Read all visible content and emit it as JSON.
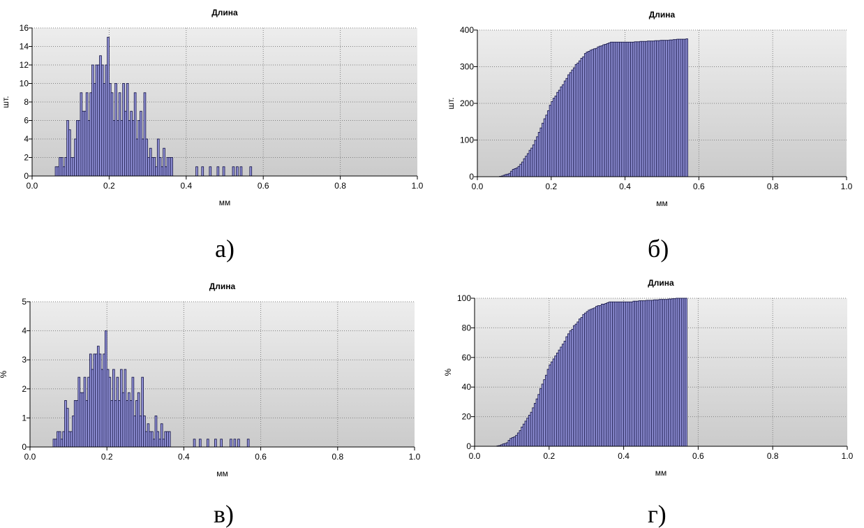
{
  "colors": {
    "plot_bg_top": "#ededed",
    "plot_bg_bottom": "#cbcbcb",
    "bar_fill": "#9a9ae2",
    "bar_stroke": "#1c1c4c",
    "grid": "#808080"
  },
  "chart_data": [
    {
      "id": "a",
      "type": "bar",
      "title": "Длина",
      "xlabel": "мм",
      "ylabel": "шт.",
      "panel_label": "а)",
      "xlim": [
        0.0,
        1.0
      ],
      "ylim": [
        0,
        16
      ],
      "xticks": [
        "0.0",
        "0.2",
        "0.4",
        "0.6",
        "0.8",
        "1.0"
      ],
      "yticks": [
        "0",
        "2",
        "4",
        "6",
        "8",
        "10",
        "12",
        "14",
        "16"
      ],
      "grid": true,
      "bin_start": 0.06,
      "bin_width": 0.005,
      "values": [
        1,
        1,
        2,
        2,
        1,
        2,
        6,
        5,
        2,
        2,
        4,
        6,
        6,
        9,
        7,
        7,
        9,
        6,
        9,
        12,
        10,
        12,
        12,
        13,
        12,
        10,
        12,
        15,
        10,
        9,
        6,
        10,
        6,
        9,
        6,
        10,
        7,
        10,
        6,
        7,
        6,
        9,
        4,
        6,
        7,
        4,
        9,
        4,
        2,
        3,
        2,
        2,
        1,
        4,
        2,
        1,
        3,
        1,
        2,
        2,
        2,
        0,
        0,
        0,
        0,
        0,
        0,
        0,
        0,
        0,
        0,
        0,
        0,
        1,
        0,
        0,
        1,
        0,
        0,
        0,
        1,
        0,
        0,
        0,
        1,
        0,
        0,
        1,
        0,
        0,
        0,
        0,
        1,
        0,
        1,
        0,
        1,
        0,
        0,
        0,
        0,
        1
      ]
    },
    {
      "id": "b",
      "type": "bar",
      "title": "Длина",
      "xlabel": "мм",
      "ylabel": "шт.",
      "panel_label": "б)",
      "xlim": [
        0.0,
        1.0
      ],
      "ylim": [
        0,
        400
      ],
      "xticks": [
        "0.0",
        "0.2",
        "0.4",
        "0.6",
        "0.8",
        "1.0"
      ],
      "yticks": [
        "0",
        "100",
        "200",
        "300",
        "400"
      ],
      "grid": true,
      "bin_start": 0.06,
      "bin_width": 0.005,
      "values": [
        1,
        2,
        4,
        6,
        7,
        9,
        15,
        20,
        22,
        24,
        28,
        34,
        40,
        49,
        56,
        63,
        72,
        78,
        87,
        99,
        109,
        121,
        133,
        146,
        158,
        168,
        180,
        195,
        205,
        214,
        220,
        230,
        236,
        245,
        251,
        261,
        268,
        278,
        284,
        291,
        297,
        306,
        310,
        316,
        323,
        327,
        336,
        340,
        342,
        345,
        347,
        349,
        350,
        354,
        356,
        357,
        360,
        361,
        363,
        365,
        367,
        367,
        367,
        367,
        367,
        367,
        367,
        367,
        367,
        367,
        367,
        367,
        367,
        368,
        368,
        368,
        369,
        369,
        369,
        369,
        370,
        370,
        370,
        370,
        371,
        371,
        371,
        372,
        372,
        372,
        372,
        372,
        373,
        373,
        374,
        374,
        375,
        375,
        375,
        375,
        375,
        376
      ]
    },
    {
      "id": "c",
      "type": "bar",
      "title": "Длина",
      "xlabel": "мм",
      "ylabel": "%",
      "panel_label": "в)",
      "xlim": [
        0.0,
        1.0
      ],
      "ylim": [
        0,
        5
      ],
      "xticks": [
        "0.0",
        "0.2",
        "0.4",
        "0.6",
        "0.8",
        "1.0"
      ],
      "yticks": [
        "0",
        "1",
        "2",
        "3",
        "4",
        "5"
      ],
      "grid": true,
      "bin_start": 0.06,
      "bin_width": 0.005,
      "values": [
        0.27,
        0.27,
        0.53,
        0.53,
        0.27,
        0.53,
        1.6,
        1.33,
        0.53,
        0.53,
        1.07,
        1.6,
        1.6,
        2.4,
        1.87,
        1.87,
        2.4,
        1.6,
        2.4,
        3.2,
        2.67,
        3.2,
        3.2,
        3.47,
        3.2,
        2.67,
        3.2,
        4.0,
        2.67,
        2.4,
        1.6,
        2.67,
        1.6,
        2.4,
        1.6,
        2.67,
        1.87,
        2.67,
        1.6,
        1.87,
        1.6,
        2.4,
        1.07,
        1.6,
        1.87,
        1.07,
        2.4,
        1.07,
        0.53,
        0.8,
        0.53,
        0.53,
        0.27,
        1.07,
        0.53,
        0.27,
        0.8,
        0.27,
        0.53,
        0.53,
        0.53,
        0,
        0,
        0,
        0,
        0,
        0,
        0,
        0,
        0,
        0,
        0,
        0,
        0.27,
        0,
        0,
        0.27,
        0,
        0,
        0,
        0.27,
        0,
        0,
        0,
        0.27,
        0,
        0,
        0.27,
        0,
        0,
        0,
        0,
        0.27,
        0,
        0.27,
        0,
        0.27,
        0,
        0,
        0,
        0,
        0.27
      ]
    },
    {
      "id": "d",
      "type": "bar",
      "title": "Длина",
      "xlabel": "мм",
      "ylabel": "%",
      "panel_label": "г)",
      "xlim": [
        0.0,
        1.0
      ],
      "ylim": [
        0,
        100
      ],
      "xticks": [
        "0.0",
        "0.2",
        "0.4",
        "0.6",
        "0.8",
        "1.0"
      ],
      "yticks": [
        "0",
        "20",
        "40",
        "60",
        "80",
        "100"
      ],
      "grid": true,
      "bin_start": 0.06,
      "bin_width": 0.005,
      "values": [
        0.3,
        0.5,
        1,
        1.6,
        1.9,
        2.4,
        4,
        5.3,
        5.9,
        6.4,
        7.4,
        9,
        10.6,
        13,
        15,
        17,
        19,
        21,
        23,
        26,
        29,
        32,
        35,
        39,
        42,
        45,
        48,
        52,
        55,
        57,
        59,
        61,
        63,
        65,
        67,
        69,
        71,
        74,
        76,
        78,
        79,
        81.5,
        82.5,
        84,
        86,
        87,
        89,
        90,
        91,
        92,
        92.5,
        93,
        93.5,
        94.5,
        95,
        95,
        96,
        96,
        96.5,
        97,
        97.5,
        97.5,
        97.5,
        97.5,
        97.5,
        97.5,
        97.5,
        97.5,
        97.5,
        97.5,
        97.5,
        97.5,
        97.5,
        98,
        98,
        98,
        98.3,
        98.3,
        98.3,
        98.3,
        98.6,
        98.6,
        98.6,
        98.6,
        98.9,
        98.9,
        98.9,
        99.2,
        99.2,
        99.2,
        99.2,
        99.2,
        99.5,
        99.5,
        99.7,
        99.7,
        100,
        100,
        100,
        100,
        100,
        100
      ]
    }
  ]
}
